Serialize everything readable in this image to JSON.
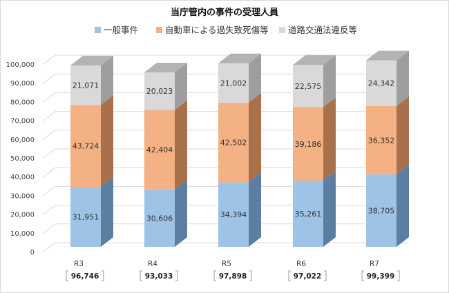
{
  "chart_data": {
    "type": "bar",
    "stacked": true,
    "title": "当庁管内の事件の受理人員",
    "categories": [
      "R3",
      "R4",
      "R5",
      "R6",
      "R7"
    ],
    "totals": [
      "96,746",
      "93,033",
      "97,898",
      "97,022",
      "99,399"
    ],
    "series": [
      {
        "name": "一般事件",
        "values": [
          31951,
          30606,
          34394,
          35261,
          38705
        ],
        "labels": [
          "31,951",
          "30,606",
          "34,394",
          "35,261",
          "38,705"
        ],
        "color": "#9dc3e6",
        "side_color": "#5b7ea3"
      },
      {
        "name": "自動車による過失致死傷等",
        "values": [
          43724,
          42404,
          42502,
          39186,
          36352
        ],
        "labels": [
          "43,724",
          "42,404",
          "42,502",
          "39,186",
          "36,352"
        ],
        "color": "#f4b183",
        "side_color": "#a8714c"
      },
      {
        "name": "道路交通法違反等",
        "values": [
          21071,
          20023,
          21002,
          22575,
          24342
        ],
        "labels": [
          "21,071",
          "20,023",
          "21,002",
          "22,575",
          "24,342"
        ],
        "color": "#d9d9d9",
        "side_color": "#9e9e9e"
      }
    ],
    "yticks": [
      "0",
      "10,000",
      "20,000",
      "30,000",
      "40,000",
      "50,000",
      "60,000",
      "70,000",
      "80,000",
      "90,000",
      "100,000"
    ],
    "ylim": [
      0,
      100000
    ],
    "legend": "top",
    "grid": true
  }
}
